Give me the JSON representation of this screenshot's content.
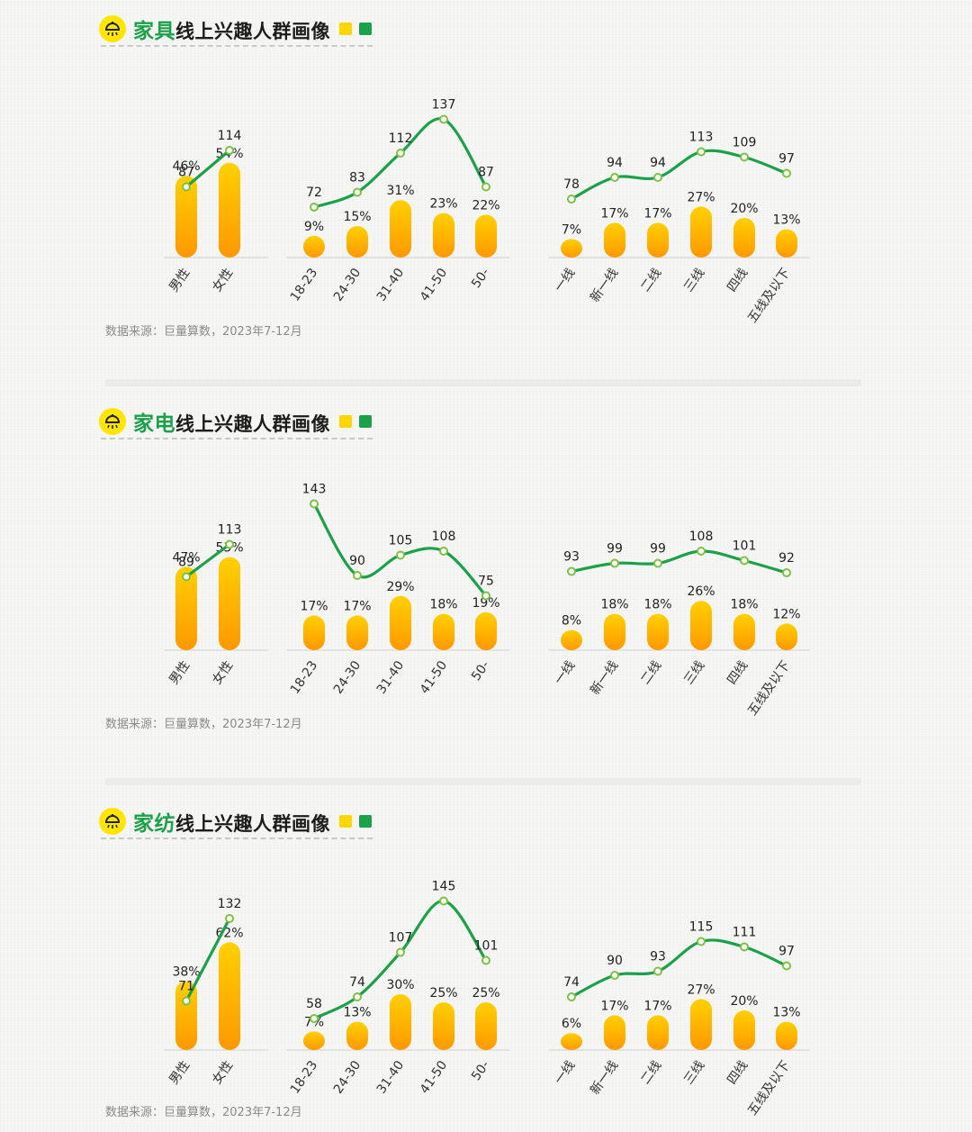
{
  "sections": [
    {
      "title_highlight": "家具",
      "title_rest": "线上兴趣人群画像",
      "source": "数据来源：巨量算数，2023年7-12月"
    },
    {
      "title_highlight": "家电",
      "title_rest": "线上兴趣人群画像",
      "source": "数据来源：巨量算数，2023年7-12月"
    },
    {
      "title_highlight": "家纺",
      "title_rest": "线上兴趣人群画像",
      "source": "数据来源：巨量算数，2023年7-12月"
    }
  ],
  "colors": {
    "accent_green": "#1ca04a",
    "accent_yellow": "#ffd600",
    "bar_top": "#ffd000",
    "bar_bottom": "#ff9800",
    "text_dark": "#222222",
    "source_gray": "#8a8a8a"
  },
  "icons": {
    "logo": "lightbulb-icon",
    "legend_yellow": "yellow-square-icon",
    "legend_green": "green-square-icon"
  },
  "chart_data": [
    {
      "type": "bar+line",
      "title": "家具线上兴趣人群画像",
      "groups": [
        {
          "categories": [
            "男性",
            "女性"
          ],
          "bar_values": [
            46,
            54
          ],
          "line_values": [
            87,
            114
          ]
        },
        {
          "categories": [
            "18-23",
            "24-30",
            "31-40",
            "41-50",
            "50-"
          ],
          "bar_values": [
            9,
            15,
            31,
            23,
            22
          ],
          "line_values": [
            72,
            83,
            112,
            137,
            87
          ]
        },
        {
          "categories": [
            "一线",
            "新一线",
            "二线",
            "三线",
            "四线",
            "五线及以下"
          ],
          "bar_values": [
            7,
            17,
            17,
            27,
            20,
            13
          ],
          "line_values": [
            78,
            94,
            94,
            113,
            109,
            97
          ]
        }
      ]
    },
    {
      "type": "bar+line",
      "title": "家电线上兴趣人群画像",
      "groups": [
        {
          "categories": [
            "男性",
            "女性"
          ],
          "bar_values": [
            47,
            53
          ],
          "line_values": [
            89,
            113
          ]
        },
        {
          "categories": [
            "18-23",
            "24-30",
            "31-40",
            "41-50",
            "50-"
          ],
          "bar_values": [
            17,
            17,
            29,
            18,
            19
          ],
          "line_values": [
            143,
            90,
            105,
            108,
            75
          ]
        },
        {
          "categories": [
            "一线",
            "新一线",
            "二线",
            "三线",
            "四线",
            "五线及以下"
          ],
          "bar_values": [
            8,
            18,
            18,
            26,
            18,
            12
          ],
          "line_values": [
            93,
            99,
            99,
            108,
            101,
            92
          ]
        }
      ]
    },
    {
      "type": "bar+line",
      "title": "家纺线上兴趣人群画像",
      "groups": [
        {
          "categories": [
            "男性",
            "女性"
          ],
          "bar_values": [
            38,
            62
          ],
          "line_values": [
            71,
            132
          ]
        },
        {
          "categories": [
            "18-23",
            "24-30",
            "31-40",
            "41-50",
            "50-"
          ],
          "bar_values": [
            7,
            13,
            30,
            25,
            25
          ],
          "line_values": [
            58,
            74,
            107,
            145,
            101
          ]
        },
        {
          "categories": [
            "一线",
            "新一线",
            "二线",
            "三线",
            "四线",
            "五线及以下"
          ],
          "bar_values": [
            6,
            17,
            17,
            27,
            20,
            13
          ],
          "line_values": [
            74,
            90,
            93,
            115,
            111,
            97
          ]
        }
      ]
    }
  ]
}
